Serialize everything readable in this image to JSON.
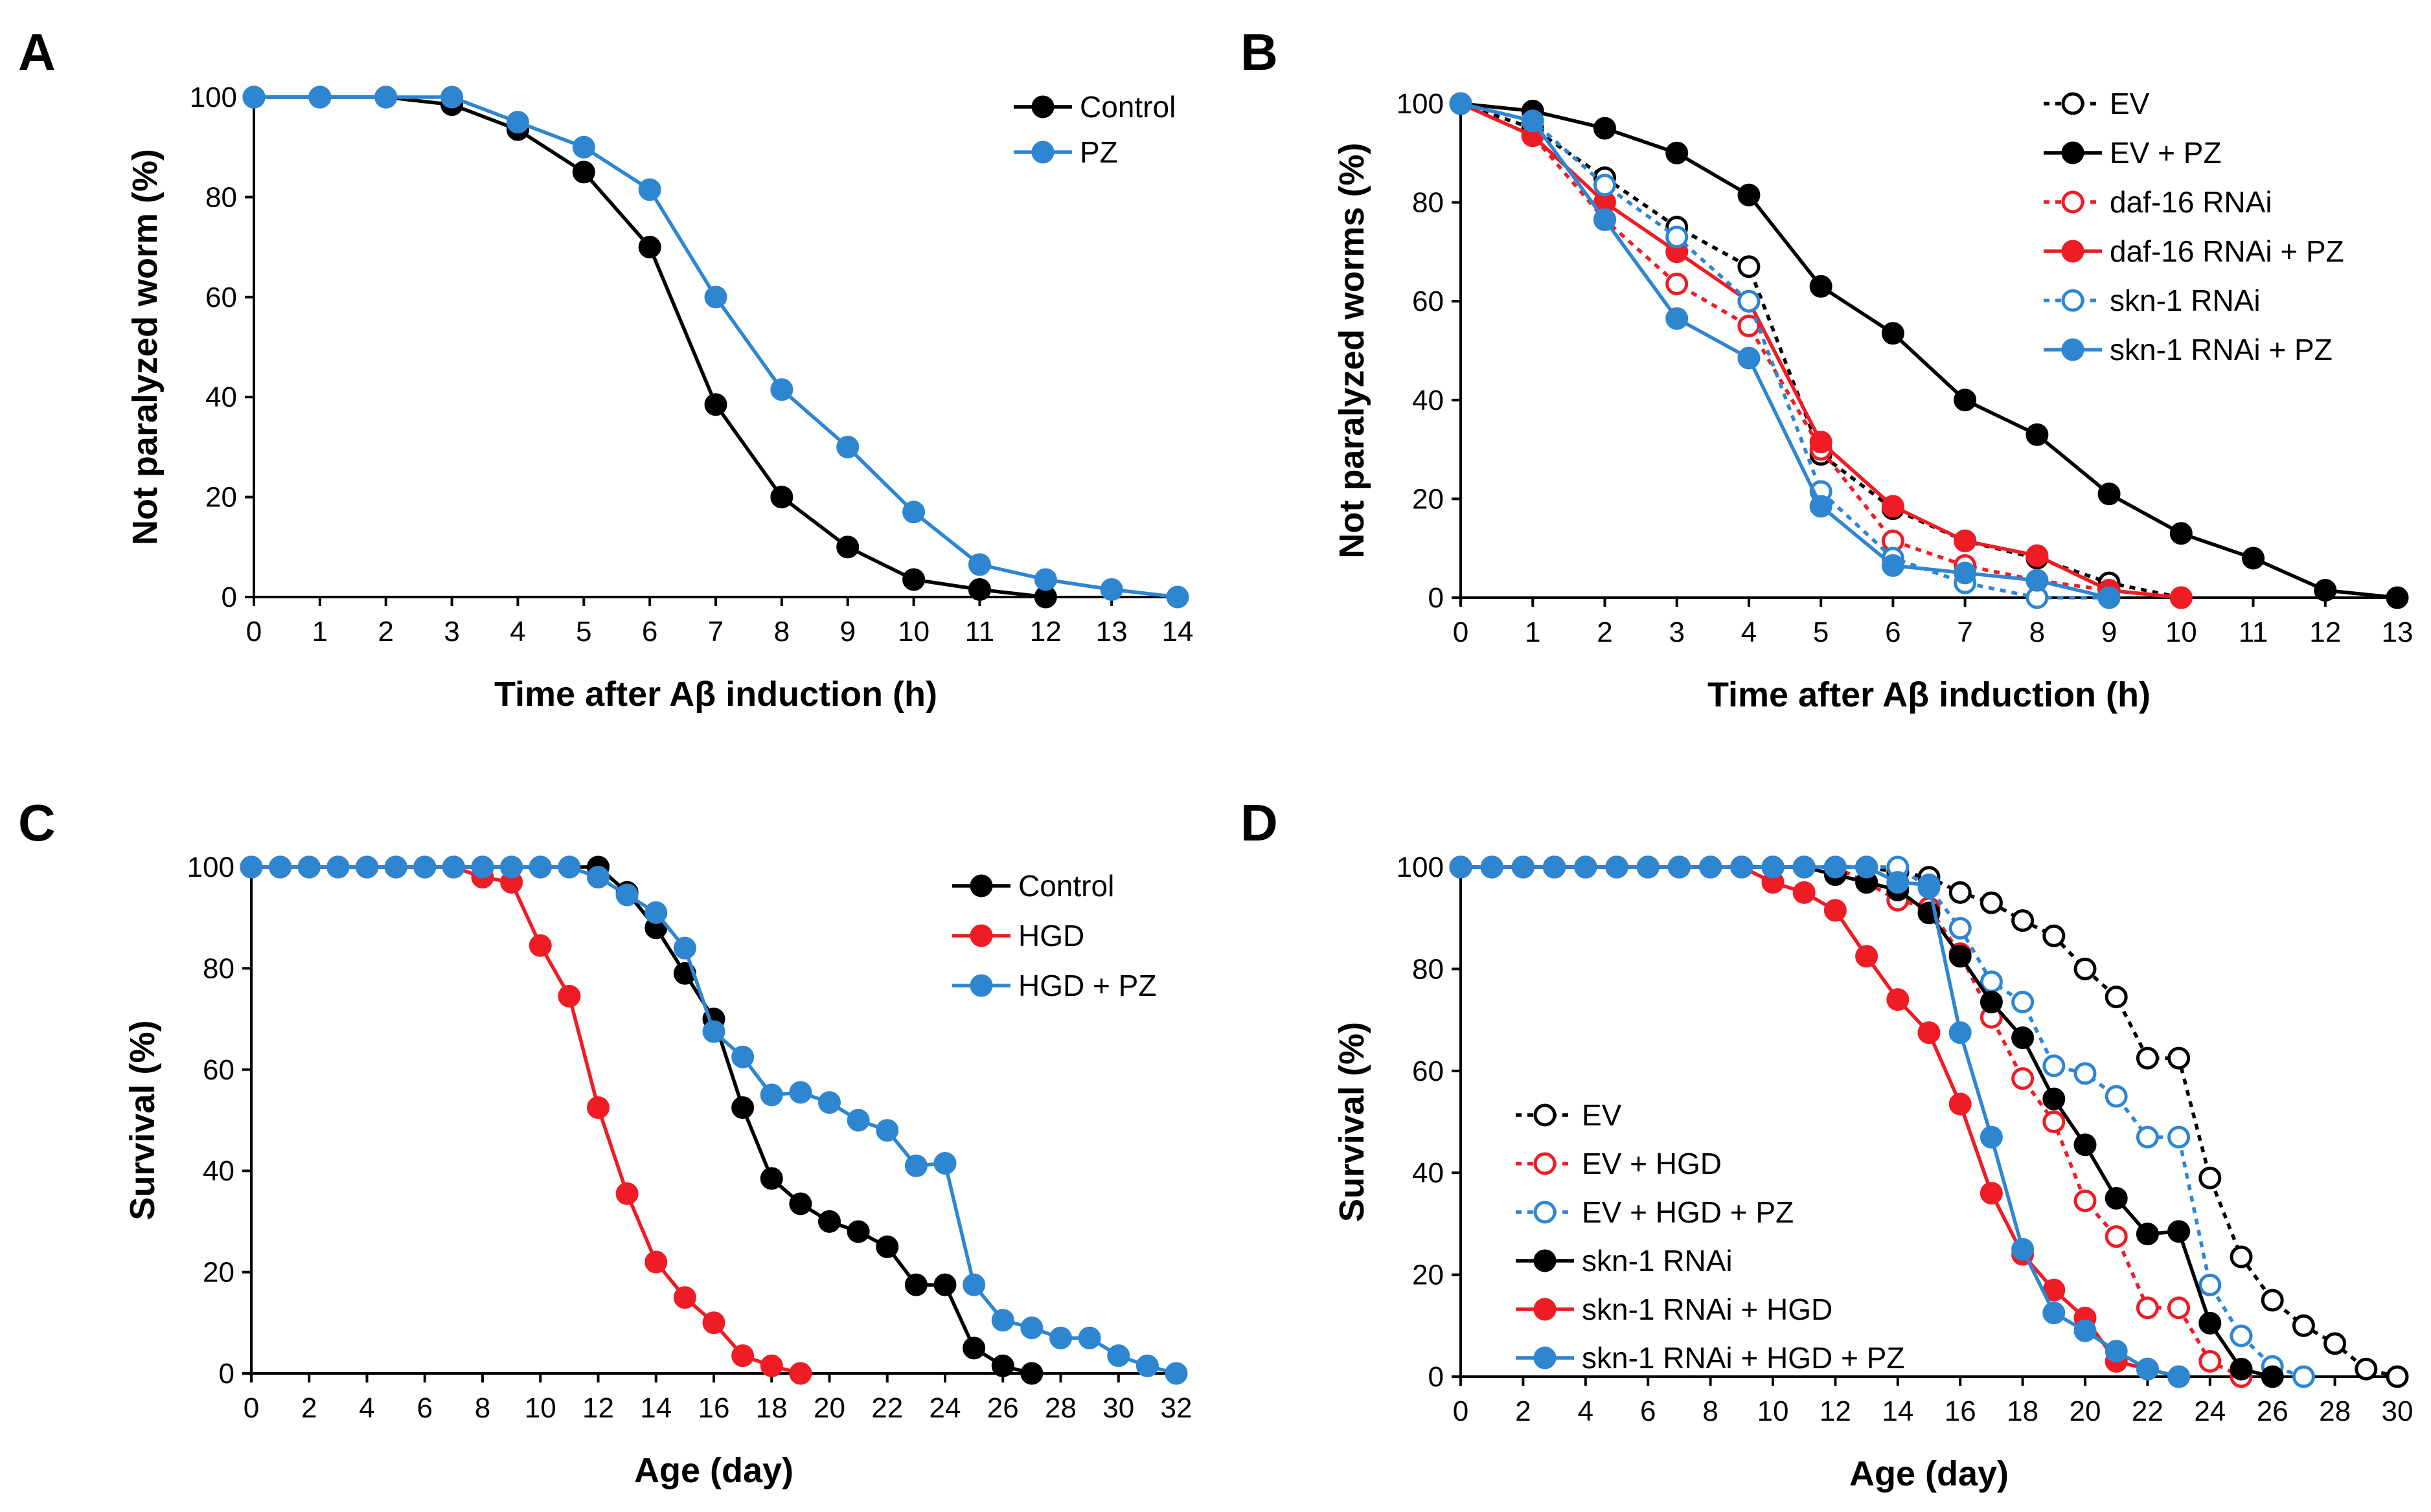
{
  "chart_data": [
    {
      "id": "A",
      "panel_label": "A",
      "type": "line",
      "xlabel": "Time after Aβ induction (h)",
      "ylabel": "Not paralyzed worm (%)",
      "xlim": [
        0,
        14
      ],
      "ylim": [
        0,
        100
      ],
      "xticks": [
        0,
        1,
        2,
        3,
        4,
        5,
        6,
        7,
        8,
        9,
        10,
        11,
        12,
        13,
        14
      ],
      "yticks": [
        0,
        20,
        40,
        60,
        80,
        100
      ],
      "legend_position": "top-right",
      "series": [
        {
          "name": "Control",
          "color": "#000000",
          "dashed": false,
          "filled": true,
          "x": [
            0,
            1,
            2,
            3,
            4,
            5,
            6,
            7,
            8,
            9,
            10,
            11,
            12
          ],
          "y": [
            100,
            100,
            100,
            98.5,
            93.5,
            85,
            70,
            38.5,
            20,
            10,
            3.5,
            1.5,
            0
          ]
        },
        {
          "name": "PZ",
          "color": "#2e86d1",
          "dashed": false,
          "filled": true,
          "x": [
            0,
            1,
            2,
            3,
            4,
            5,
            6,
            7,
            8,
            9,
            10,
            11,
            12,
            13,
            14
          ],
          "y": [
            100,
            100,
            100,
            100,
            95,
            90,
            81.5,
            60,
            41.5,
            30,
            17,
            6.5,
            3.5,
            1.5,
            0
          ]
        }
      ]
    },
    {
      "id": "B",
      "panel_label": "B",
      "type": "line",
      "xlabel": "Time after Aβ induction (h)",
      "ylabel": "Not paralyzed worms (%)",
      "xlim": [
        0,
        13
      ],
      "ylim": [
        0,
        100
      ],
      "xticks": [
        0,
        1,
        2,
        3,
        4,
        5,
        6,
        7,
        8,
        9,
        10,
        11,
        12,
        13
      ],
      "yticks": [
        0,
        20,
        40,
        60,
        80,
        100
      ],
      "legend_position": "top-right",
      "series": [
        {
          "name": "EV",
          "color": "#000000",
          "dashed": true,
          "filled": false,
          "x": [
            0,
            1,
            2,
            3,
            4,
            5,
            6,
            7,
            8,
            9,
            10
          ],
          "y": [
            100,
            95,
            85,
            75,
            67,
            29,
            18,
            11.5,
            8,
            3,
            0
          ]
        },
        {
          "name": "EV + PZ",
          "color": "#000000",
          "dashed": false,
          "filled": true,
          "x": [
            0,
            1,
            2,
            3,
            4,
            5,
            6,
            7,
            8,
            9,
            10,
            11,
            12,
            13
          ],
          "y": [
            100,
            98.5,
            95,
            90,
            81.5,
            63,
            53.5,
            40,
            33,
            21,
            13,
            8,
            1.5,
            0
          ]
        },
        {
          "name": "daf-16 RNAi",
          "color": "#ee1c25",
          "dashed": true,
          "filled": false,
          "x": [
            0,
            1,
            2,
            3,
            4,
            5,
            6,
            7,
            8,
            9,
            10
          ],
          "y": [
            100,
            93.5,
            76.5,
            63.5,
            55,
            30,
            11.5,
            6.5,
            3.5,
            1.5,
            0
          ]
        },
        {
          "name": "daf-16 RNAi + PZ",
          "color": "#ee1c25",
          "dashed": false,
          "filled": true,
          "x": [
            0,
            1,
            2,
            3,
            4,
            5,
            6,
            7,
            8,
            9,
            10
          ],
          "y": [
            100,
            93.5,
            80,
            70,
            60,
            31.5,
            18.5,
            11.5,
            8.5,
            1.5,
            0
          ]
        },
        {
          "name": "skn-1 RNAi",
          "color": "#2e86d1",
          "dashed": true,
          "filled": false,
          "x": [
            0,
            1,
            2,
            3,
            4,
            5,
            6,
            7,
            8,
            9
          ],
          "y": [
            100,
            96.5,
            83.5,
            73,
            60,
            21.5,
            8,
            3,
            0,
            0
          ]
        },
        {
          "name": "skn-1 RNAi + PZ",
          "color": "#2e86d1",
          "dashed": false,
          "filled": true,
          "x": [
            0,
            1,
            2,
            3,
            4,
            5,
            6,
            7,
            8,
            9
          ],
          "y": [
            100,
            96.5,
            76.5,
            56.5,
            48.5,
            18.5,
            6.5,
            5,
            3.5,
            0
          ]
        }
      ]
    },
    {
      "id": "C",
      "panel_label": "C",
      "type": "line",
      "xlabel": "Age (day)",
      "ylabel": "Survival (%)",
      "xlim": [
        0,
        32
      ],
      "ylim": [
        0,
        100
      ],
      "xticks": [
        0,
        2,
        4,
        6,
        8,
        10,
        12,
        14,
        16,
        18,
        20,
        22,
        24,
        26,
        28,
        30,
        32
      ],
      "yticks": [
        0,
        20,
        40,
        60,
        80,
        100
      ],
      "legend_position": "top-right",
      "series": [
        {
          "name": "Control",
          "color": "#000000",
          "dashed": false,
          "filled": true,
          "x": [
            0,
            1,
            2,
            3,
            4,
            5,
            6,
            7,
            8,
            9,
            10,
            11,
            12,
            13,
            14,
            15,
            16,
            17,
            18,
            19,
            20,
            21,
            22,
            23,
            24,
            25,
            26,
            27
          ],
          "y": [
            100,
            100,
            100,
            100,
            100,
            100,
            100,
            100,
            100,
            100,
            100,
            100,
            100,
            95,
            88,
            79,
            70,
            52.5,
            38.5,
            33.5,
            30,
            28,
            25,
            17.5,
            17.5,
            5,
            1.5,
            0
          ]
        },
        {
          "name": "HGD",
          "color": "#ee1c25",
          "dashed": false,
          "filled": true,
          "x": [
            0,
            1,
            2,
            3,
            4,
            5,
            6,
            7,
            8,
            9,
            10,
            11,
            12,
            13,
            14,
            15,
            16,
            17,
            18,
            19
          ],
          "y": [
            100,
            100,
            100,
            100,
            100,
            100,
            100,
            100,
            98,
            97,
            84.5,
            74.5,
            52.5,
            35.5,
            22,
            15,
            10,
            3.5,
            1.5,
            0
          ]
        },
        {
          "name": "HGD + PZ",
          "color": "#2e86d1",
          "dashed": false,
          "filled": true,
          "x": [
            0,
            1,
            2,
            3,
            4,
            5,
            6,
            7,
            8,
            9,
            10,
            11,
            12,
            13,
            14,
            15,
            16,
            17,
            18,
            19,
            20,
            21,
            22,
            23,
            24,
            25,
            26,
            27,
            28,
            29,
            30,
            31,
            32
          ],
          "y": [
            100,
            100,
            100,
            100,
            100,
            100,
            100,
            100,
            100,
            100,
            100,
            100,
            98,
            94.5,
            91,
            84,
            67.5,
            62.5,
            55,
            55.5,
            53.5,
            50,
            48,
            41,
            41.5,
            17.5,
            10.5,
            9,
            7,
            7,
            3.5,
            1.5,
            0
          ]
        }
      ]
    },
    {
      "id": "D",
      "panel_label": "D",
      "type": "line",
      "xlabel": "Age (day)",
      "ylabel": "Survival (%)",
      "xlim": [
        0,
        30
      ],
      "ylim": [
        0,
        100
      ],
      "xticks": [
        0,
        2,
        4,
        6,
        8,
        10,
        12,
        14,
        16,
        18,
        20,
        22,
        24,
        26,
        28,
        30
      ],
      "yticks": [
        0,
        20,
        40,
        60,
        80,
        100
      ],
      "legend_position": "middle-left",
      "series": [
        {
          "name": "EV",
          "color": "#000000",
          "dashed": true,
          "filled": false,
          "x": [
            0,
            1,
            2,
            3,
            4,
            5,
            6,
            7,
            8,
            9,
            10,
            11,
            12,
            13,
            14,
            15,
            16,
            17,
            18,
            19,
            20,
            21,
            22,
            23,
            24,
            25,
            26,
            27,
            28,
            29,
            30
          ],
          "y": [
            100,
            100,
            100,
            100,
            100,
            100,
            100,
            100,
            100,
            100,
            100,
            100,
            100,
            100,
            99,
            98,
            95,
            93,
            89.5,
            86.5,
            80,
            74.5,
            62.5,
            62.5,
            39,
            23.5,
            15,
            10,
            6.5,
            1.5,
            0
          ]
        },
        {
          "name": "EV + HGD",
          "color": "#ee1c25",
          "dashed": true,
          "filled": false,
          "x": [
            0,
            1,
            2,
            3,
            4,
            5,
            6,
            7,
            8,
            9,
            10,
            11,
            12,
            13,
            14,
            15,
            16,
            17,
            18,
            19,
            20,
            21,
            22,
            23,
            24,
            25
          ],
          "y": [
            100,
            100,
            100,
            100,
            100,
            100,
            100,
            100,
            100,
            100,
            100,
            100,
            100,
            97,
            93.5,
            92,
            83,
            70.5,
            58.5,
            50,
            34.5,
            27.5,
            13.5,
            13.5,
            3,
            0
          ]
        },
        {
          "name": "EV + HGD + PZ",
          "color": "#2e86d1",
          "dashed": true,
          "filled": false,
          "x": [
            0,
            1,
            2,
            3,
            4,
            5,
            6,
            7,
            8,
            9,
            10,
            11,
            12,
            13,
            14,
            15,
            16,
            17,
            18,
            19,
            20,
            21,
            22,
            23,
            24,
            25,
            26,
            27
          ],
          "y": [
            100,
            100,
            100,
            100,
            100,
            100,
            100,
            100,
            100,
            100,
            100,
            100,
            100,
            100,
            100,
            96,
            88,
            77.5,
            73.5,
            61,
            59.5,
            55,
            47,
            47,
            18,
            8,
            2,
            0
          ]
        },
        {
          "name": "skn-1 RNAi",
          "color": "#000000",
          "dashed": false,
          "filled": true,
          "x": [
            0,
            1,
            2,
            3,
            4,
            5,
            6,
            7,
            8,
            9,
            10,
            11,
            12,
            13,
            14,
            15,
            16,
            17,
            18,
            19,
            20,
            21,
            22,
            23,
            24,
            25,
            26
          ],
          "y": [
            100,
            100,
            100,
            100,
            100,
            100,
            100,
            100,
            100,
            100,
            100,
            100,
            98.5,
            97,
            95.5,
            91,
            82.5,
            73.5,
            66.5,
            54.5,
            45.5,
            35,
            28,
            28.5,
            10.5,
            1.5,
            0
          ]
        },
        {
          "name": "skn-1 RNAi + HGD",
          "color": "#ee1c25",
          "dashed": false,
          "filled": true,
          "x": [
            0,
            1,
            2,
            3,
            4,
            5,
            6,
            7,
            8,
            9,
            10,
            11,
            12,
            13,
            14,
            15,
            16,
            17,
            18,
            19,
            20,
            21,
            22,
            23
          ],
          "y": [
            100,
            100,
            100,
            100,
            100,
            100,
            100,
            100,
            100,
            100,
            97,
            95,
            91.5,
            82.5,
            74,
            67.5,
            53.5,
            36,
            24,
            17,
            11.5,
            3,
            1.5,
            0
          ]
        },
        {
          "name": "skn-1 RNAi + HGD + PZ",
          "color": "#2e86d1",
          "dashed": false,
          "filled": true,
          "x": [
            0,
            1,
            2,
            3,
            4,
            5,
            6,
            7,
            8,
            9,
            10,
            11,
            12,
            13,
            14,
            15,
            16,
            17,
            18,
            19,
            20,
            21,
            22,
            23
          ],
          "y": [
            100,
            100,
            100,
            100,
            100,
            100,
            100,
            100,
            100,
            100,
            100,
            100,
            100,
            100,
            97,
            96.5,
            67.5,
            47,
            25,
            12.5,
            9,
            5,
            1.5,
            0
          ]
        }
      ]
    }
  ]
}
